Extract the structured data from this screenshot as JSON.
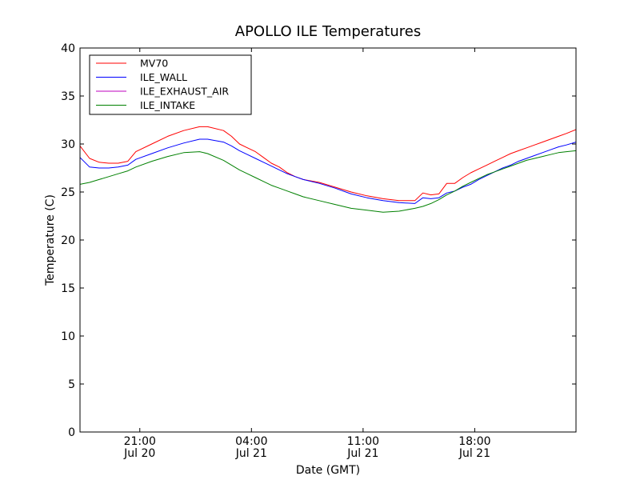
{
  "chart_data": {
    "type": "line",
    "title": "APOLLO ILE Temperatures",
    "xlabel": "Date (GMT)",
    "ylabel": "Temperature (C)",
    "x_unit": "hours since 2020-07-20 17:15 GMT",
    "xlim": [
      0,
      31.1
    ],
    "ylim": [
      0,
      40
    ],
    "yticks": [
      0,
      5,
      10,
      15,
      20,
      25,
      30,
      35,
      40
    ],
    "xticks": [
      {
        "x": 3.75,
        "time": "21:00",
        "date": "Jul 20"
      },
      {
        "x": 10.75,
        "time": "04:00",
        "date": "Jul 21"
      },
      {
        "x": 17.75,
        "time": "11:00",
        "date": "Jul 21"
      },
      {
        "x": 24.75,
        "time": "18:00",
        "date": "Jul 21"
      }
    ],
    "grid": false,
    "legend": {
      "placement": "top-left",
      "entries": [
        "MV70",
        "ILE_WALL",
        "ILE_EXHAUST_AIR",
        "ILE_INTAKE"
      ]
    },
    "series": [
      {
        "name": "MV70",
        "color": "#ff0000",
        "x": [
          0,
          0.6,
          1.2,
          1.8,
          2.4,
          3.0,
          3.5,
          4.5,
          5.5,
          6.5,
          7.5,
          8.0,
          9.0,
          9.5,
          10.0,
          10.5,
          11.0,
          11.5,
          12.0,
          12.5,
          13.0,
          13.5,
          14.0,
          15.0,
          16.0,
          17.0,
          18.0,
          19.0,
          20.0,
          21.0,
          21.5,
          22.0,
          22.5,
          23.0,
          23.5,
          24.0,
          24.5,
          25.0,
          25.5,
          26.0,
          26.5,
          27.0,
          27.5,
          28.0,
          28.5,
          29.0,
          29.5,
          30.0,
          30.5,
          31.1
        ],
        "y": [
          29.8,
          28.5,
          28.1,
          28.0,
          28.0,
          28.2,
          29.2,
          30.0,
          30.8,
          31.4,
          31.8,
          31.8,
          31.4,
          30.8,
          30.0,
          29.6,
          29.2,
          28.6,
          28.0,
          27.6,
          27.0,
          26.6,
          26.3,
          26.0,
          25.5,
          25.0,
          24.6,
          24.3,
          24.1,
          24.1,
          24.9,
          24.7,
          24.8,
          25.9,
          25.9,
          26.5,
          27.0,
          27.4,
          27.8,
          28.2,
          28.6,
          29.0,
          29.3,
          29.6,
          29.9,
          30.2,
          30.5,
          30.8,
          31.1,
          31.5
        ]
      },
      {
        "name": "ILE_WALL",
        "color": "#0000ff",
        "x": [
          0,
          0.6,
          1.2,
          1.8,
          2.4,
          3.0,
          3.5,
          4.5,
          5.5,
          6.5,
          7.5,
          8.0,
          9.0,
          9.5,
          10.0,
          10.5,
          11.0,
          11.5,
          12.0,
          12.5,
          13.0,
          13.5,
          14.0,
          15.0,
          16.0,
          17.0,
          18.0,
          19.0,
          20.0,
          21.0,
          21.5,
          22.0,
          22.5,
          23.0,
          23.5,
          24.0,
          24.5,
          25.0,
          25.5,
          26.0,
          26.5,
          27.0,
          27.5,
          28.0,
          28.5,
          29.0,
          29.5,
          30.0,
          30.5,
          31.1
        ],
        "y": [
          28.6,
          27.6,
          27.5,
          27.5,
          27.6,
          27.8,
          28.4,
          29.0,
          29.6,
          30.1,
          30.5,
          30.5,
          30.2,
          29.8,
          29.3,
          28.9,
          28.5,
          28.1,
          27.7,
          27.3,
          26.9,
          26.6,
          26.3,
          25.9,
          25.4,
          24.8,
          24.4,
          24.1,
          23.9,
          23.8,
          24.4,
          24.3,
          24.4,
          24.9,
          25.1,
          25.5,
          25.8,
          26.3,
          26.7,
          27.1,
          27.5,
          27.8,
          28.2,
          28.5,
          28.8,
          29.1,
          29.4,
          29.7,
          29.9,
          30.2
        ]
      },
      {
        "name": "ILE_EXHAUST_AIR",
        "color": "#bf00bf",
        "x": [],
        "y": []
      },
      {
        "name": "ILE_INTAKE",
        "color": "#008000",
        "x": [
          0,
          0.6,
          1.2,
          1.8,
          2.4,
          3.0,
          3.5,
          4.5,
          5.5,
          6.5,
          7.5,
          8.0,
          9.0,
          9.5,
          10.0,
          10.5,
          11.0,
          11.5,
          12.0,
          12.5,
          13.0,
          13.5,
          14.0,
          15.0,
          16.0,
          17.0,
          18.0,
          19.0,
          20.0,
          21.0,
          21.5,
          22.0,
          22.5,
          23.0,
          23.5,
          24.0,
          24.5,
          25.0,
          25.5,
          26.0,
          26.5,
          27.0,
          27.5,
          28.0,
          28.5,
          29.0,
          29.5,
          30.0,
          30.5,
          31.1
        ],
        "y": [
          25.8,
          26.0,
          26.3,
          26.6,
          26.9,
          27.2,
          27.6,
          28.2,
          28.7,
          29.1,
          29.2,
          29.0,
          28.3,
          27.8,
          27.3,
          26.9,
          26.5,
          26.1,
          25.7,
          25.4,
          25.1,
          24.8,
          24.5,
          24.1,
          23.7,
          23.3,
          23.1,
          22.9,
          23.0,
          23.3,
          23.5,
          23.8,
          24.2,
          24.7,
          25.1,
          25.6,
          26.0,
          26.4,
          26.8,
          27.1,
          27.4,
          27.7,
          28.0,
          28.3,
          28.5,
          28.7,
          28.9,
          29.1,
          29.2,
          29.3
        ]
      }
    ]
  }
}
